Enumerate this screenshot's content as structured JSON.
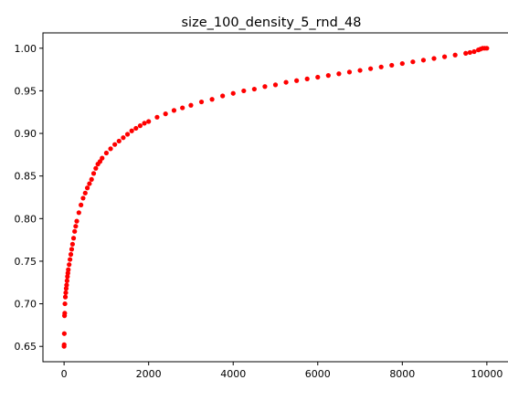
{
  "chart_data": {
    "type": "scatter",
    "title": "size_100_density_5_rnd_48",
    "xlabel": "",
    "ylabel": "",
    "xlim": [
      -500,
      10500
    ],
    "ylim": [
      0.632,
      1.018
    ],
    "xticks": [
      0,
      2000,
      4000,
      6000,
      8000,
      10000
    ],
    "xtick_labels": [
      "0",
      "2000",
      "4000",
      "6000",
      "8000",
      "10000"
    ],
    "yticks": [
      0.65,
      0.7,
      0.75,
      0.8,
      0.85,
      0.9,
      0.95,
      1.0
    ],
    "ytick_labels": [
      "0.65",
      "0.70",
      "0.75",
      "0.80",
      "0.85",
      "0.90",
      "0.95",
      "1.00"
    ],
    "grid": false,
    "legend": "none",
    "marker_color": "#ff0000",
    "series": [
      {
        "x": [
          0,
          2,
          5,
          10,
          15,
          20,
          30,
          40,
          50,
          60,
          70,
          80,
          90,
          100,
          120,
          140,
          160,
          180,
          200,
          225,
          250,
          275,
          300,
          350,
          400,
          450,
          500,
          550,
          600,
          650,
          700,
          750,
          800,
          850,
          900,
          1000,
          1100,
          1200,
          1300,
          1400,
          1500,
          1600,
          1700,
          1800,
          1900,
          2000,
          2200,
          2400,
          2600,
          2800,
          3000,
          3250,
          3500,
          3750,
          4000,
          4250,
          4500,
          4750,
          5000,
          5250,
          5500,
          5750,
          6000,
          6250,
          6500,
          6750,
          7000,
          7250,
          7500,
          7750,
          8000,
          8250,
          8500,
          8750,
          9000,
          9250,
          9500,
          9600,
          9700,
          9800,
          9850,
          9900,
          9950,
          10000
        ],
        "y": [
          0.65,
          0.652,
          0.665,
          0.686,
          0.689,
          0.7,
          0.708,
          0.713,
          0.718,
          0.722,
          0.727,
          0.732,
          0.736,
          0.74,
          0.746,
          0.752,
          0.758,
          0.764,
          0.77,
          0.777,
          0.785,
          0.791,
          0.797,
          0.807,
          0.816,
          0.824,
          0.83,
          0.836,
          0.841,
          0.846,
          0.853,
          0.859,
          0.864,
          0.867,
          0.871,
          0.877,
          0.882,
          0.887,
          0.891,
          0.895,
          0.899,
          0.903,
          0.906,
          0.909,
          0.912,
          0.914,
          0.919,
          0.923,
          0.927,
          0.93,
          0.933,
          0.937,
          0.94,
          0.944,
          0.947,
          0.95,
          0.952,
          0.955,
          0.957,
          0.96,
          0.962,
          0.964,
          0.966,
          0.968,
          0.97,
          0.972,
          0.974,
          0.976,
          0.978,
          0.98,
          0.982,
          0.984,
          0.986,
          0.988,
          0.99,
          0.992,
          0.994,
          0.995,
          0.996,
          0.998,
          0.999,
          1.0,
          1.0,
          1.0
        ]
      }
    ]
  }
}
